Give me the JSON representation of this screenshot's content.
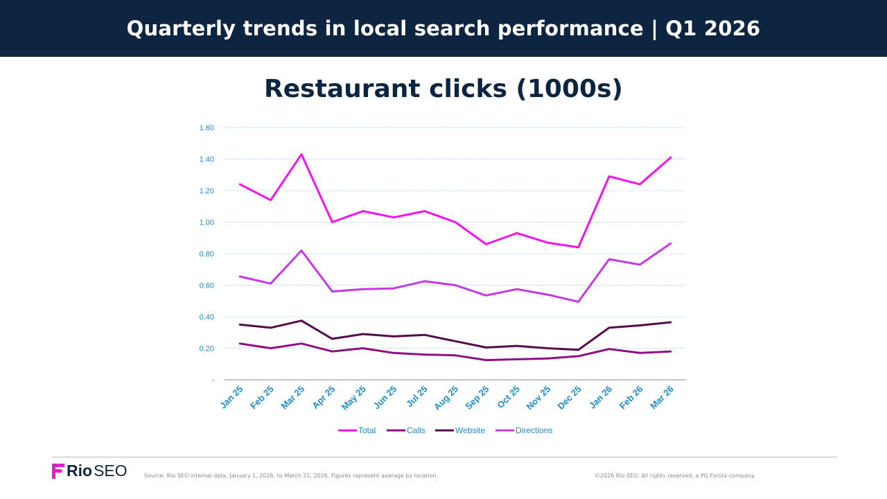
{
  "header": {
    "title": "Quarterly trends in local search performance | Q1 2026"
  },
  "logo": {
    "word1": "Rio",
    "word2": "SEO"
  },
  "footer": {
    "source": "Source: Rio SEO internal data, January 1, 2026, to March 21, 2026. Figures represent average by location.",
    "copyright": "©2026 Rio SEO. All rights reserved, a PG Forsta company."
  },
  "colors": {
    "header_bg": "#0e2542",
    "tick_text": "#1b8ccf",
    "grid": "#bfe0ee",
    "logo_accent": "#e91ccc"
  },
  "chart_data": {
    "type": "line",
    "title": "Restaurant clicks (1000s)",
    "categories": [
      "Jan 25",
      "Feb 25",
      "Mar 25",
      "Apr 25",
      "May 25",
      "Jun 25",
      "Jul 25",
      "Aug 25",
      "Sep 25",
      "Oct 25",
      "Nov 25",
      "Dec 25",
      "Jan 26",
      "Feb 26",
      "Mar 26"
    ],
    "ylim": [
      0,
      1.6
    ],
    "yticks": [
      0,
      0.2,
      0.4,
      0.6,
      0.8,
      1.0,
      1.2,
      1.4,
      1.6
    ],
    "ytick_labels": [
      "-",
      "0.20",
      "0.40",
      "0.60",
      "0.80",
      "1.00",
      "1.20",
      "1.40",
      "1.60"
    ],
    "grid": true,
    "legend_position": "bottom",
    "series": [
      {
        "name": "Total",
        "color": "#f511f0",
        "values": [
          1.24,
          1.14,
          1.43,
          1.0,
          1.07,
          1.03,
          1.07,
          1.0,
          0.86,
          0.93,
          0.87,
          0.84,
          1.29,
          1.24,
          1.41
        ]
      },
      {
        "name": "Calls",
        "color": "#8e0f82",
        "values": [
          0.23,
          0.2,
          0.23,
          0.18,
          0.2,
          0.17,
          0.16,
          0.155,
          0.125,
          0.13,
          0.135,
          0.15,
          0.195,
          0.17,
          0.18
        ]
      },
      {
        "name": "Website",
        "color": "#560a4c",
        "values": [
          0.35,
          0.33,
          0.375,
          0.26,
          0.29,
          0.275,
          0.285,
          0.245,
          0.205,
          0.215,
          0.2,
          0.19,
          0.33,
          0.345,
          0.365
        ]
      },
      {
        "name": "Directions",
        "color": "#c438e6",
        "values": [
          0.655,
          0.61,
          0.82,
          0.56,
          0.575,
          0.58,
          0.625,
          0.6,
          0.535,
          0.575,
          0.54,
          0.495,
          0.765,
          0.73,
          0.865
        ]
      }
    ]
  }
}
